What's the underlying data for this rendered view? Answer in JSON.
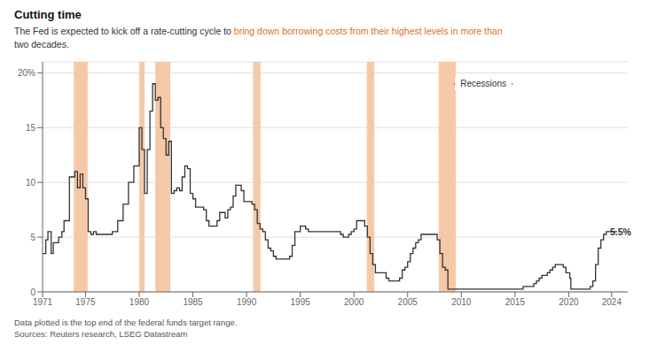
{
  "chart_data": {
    "type": "step",
    "title": "Cutting time",
    "subtitle": [
      [
        {
          "text": "The Fed is expected to kick off a rate-cutting cycle to ",
          "color": "#333333"
        },
        {
          "text": "bring down borrowing costs from their highest levels in more than",
          "color": "#e07020"
        }
      ],
      [
        {
          "text": "two decades.",
          "color": "#333333"
        }
      ]
    ],
    "footnotes": [
      "Data plotted is the top end of the federal funds target range.",
      "Sources: Reuters research, LSEG Datastream"
    ],
    "color": "#333333",
    "recession_color": "#f5c9a8",
    "grid": true,
    "recession_bands": [
      [
        1973.9,
        1975.2
      ],
      [
        1980.0,
        1980.5
      ],
      [
        1981.5,
        1982.9
      ],
      [
        1990.6,
        1991.3
      ],
      [
        2001.2,
        2001.9
      ],
      [
        2007.9,
        2009.5
      ]
    ],
    "annotations": [
      {
        "text": "5.5%",
        "x": 2023.6,
        "y": 5.5
      }
    ],
    "range_label": {
      "text": "Recessions",
      "x": 2012.05,
      "y": 19.0,
      "x_from": 2009.3,
      "x_to": 2014.8
    },
    "xlim": [
      1971,
      2025.5
    ],
    "xticks": [
      1971,
      1975,
      1980,
      1985,
      1990,
      1995,
      2000,
      2005,
      2010,
      2015,
      2020,
      2024
    ],
    "ylim": [
      0,
      21.0
    ],
    "yticks": [
      0,
      5,
      10,
      15,
      {
        "value": 20,
        "label": "20%"
      }
    ],
    "x": [
      1971.0,
      1971.3,
      1971.5,
      1971.8,
      1972.0,
      1972.5,
      1972.8,
      1973.0,
      1973.5,
      1974.0,
      1974.25,
      1974.5,
      1974.75,
      1975.0,
      1975.25,
      1975.5,
      1975.75,
      1976.0,
      1976.5,
      1977.0,
      1977.5,
      1978.0,
      1978.5,
      1979.0,
      1979.5,
      1980.0,
      1980.25,
      1980.5,
      1980.75,
      1981.0,
      1981.25,
      1981.5,
      1981.75,
      1982.0,
      1982.25,
      1982.5,
      1982.75,
      1983.0,
      1983.25,
      1983.5,
      1983.75,
      1984.0,
      1984.25,
      1984.5,
      1984.75,
      1985.0,
      1985.25,
      1985.5,
      1985.75,
      1986.0,
      1986.25,
      1986.5,
      1986.75,
      1987.0,
      1987.25,
      1987.5,
      1987.75,
      1988.0,
      1988.25,
      1988.5,
      1988.75,
      1989.0,
      1989.25,
      1989.5,
      1989.75,
      1990.0,
      1990.25,
      1990.5,
      1990.75,
      1991.0,
      1991.25,
      1991.5,
      1991.75,
      1992.0,
      1992.25,
      1992.5,
      1992.75,
      1993.0,
      1993.5,
      1994.0,
      1994.25,
      1994.5,
      1994.75,
      1995.0,
      1995.25,
      1995.5,
      1995.75,
      1996.0,
      1996.5,
      1997.0,
      1997.5,
      1998.0,
      1998.5,
      1998.75,
      1999.0,
      1999.25,
      1999.5,
      1999.75,
      2000.0,
      2000.25,
      2000.5,
      2000.75,
      2001.0,
      2001.25,
      2001.5,
      2001.75,
      2002.0,
      2002.5,
      2003.0,
      2003.25,
      2004.0,
      2004.25,
      2004.5,
      2004.75,
      2005.0,
      2005.25,
      2005.5,
      2005.75,
      2006.0,
      2006.25,
      2006.5,
      2006.75,
      2007.0,
      2007.25,
      2007.5,
      2007.75,
      2008.0,
      2008.25,
      2008.5,
      2008.75,
      2009.0,
      2009.5,
      2010.0,
      2011.0,
      2012.0,
      2013.0,
      2014.0,
      2015.0,
      2015.75,
      2016.0,
      2016.75,
      2017.0,
      2017.25,
      2017.5,
      2017.75,
      2018.0,
      2018.25,
      2018.5,
      2018.75,
      2019.0,
      2019.5,
      2019.75,
      2020.0,
      2020.1,
      2020.2,
      2020.5,
      2021.0,
      2021.5,
      2022.0,
      2022.25,
      2022.5,
      2022.75,
      2023.0,
      2023.25,
      2023.5,
      2024.0,
      2024.5
    ],
    "values": [
      3.5,
      4.75,
      5.5,
      3.5,
      4.5,
      5.0,
      5.5,
      6.5,
      10.5,
      11.0,
      9.5,
      10.75,
      9.5,
      8.5,
      5.5,
      5.25,
      5.5,
      5.25,
      5.25,
      5.25,
      5.5,
      6.5,
      8.0,
      10.0,
      11.5,
      15.0,
      13.0,
      9.0,
      13.0,
      16.5,
      19.0,
      17.5,
      17.75,
      15.0,
      14.0,
      12.5,
      13.75,
      9.0,
      9.25,
      9.5,
      9.25,
      10.5,
      11.5,
      11.25,
      9.0,
      8.5,
      7.75,
      7.75,
      7.75,
      7.5,
      6.5,
      6.0,
      6.0,
      6.0,
      6.5,
      7.25,
      7.25,
      6.75,
      7.5,
      7.75,
      8.75,
      9.75,
      9.75,
      9.25,
      8.25,
      8.25,
      8.25,
      8.0,
      7.5,
      6.25,
      5.75,
      5.5,
      4.75,
      4.0,
      3.75,
      3.25,
      3.0,
      3.0,
      3.0,
      3.25,
      4.25,
      5.5,
      5.5,
      6.0,
      6.0,
      5.75,
      5.5,
      5.5,
      5.5,
      5.5,
      5.5,
      5.5,
      5.5,
      5.25,
      5.0,
      5.0,
      5.25,
      5.5,
      5.75,
      6.5,
      6.5,
      6.5,
      6.0,
      5.0,
      3.5,
      2.5,
      1.75,
      1.75,
      1.25,
      1.0,
      1.0,
      1.25,
      2.0,
      2.25,
      2.75,
      3.5,
      4.0,
      4.5,
      4.75,
      5.25,
      5.25,
      5.25,
      5.25,
      5.25,
      5.25,
      4.75,
      3.5,
      2.25,
      2.0,
      0.25,
      0.25,
      0.25,
      0.25,
      0.25,
      0.25,
      0.25,
      0.25,
      0.25,
      0.5,
      0.5,
      0.75,
      1.0,
      1.25,
      1.5,
      1.5,
      1.75,
      2.0,
      2.25,
      2.5,
      2.5,
      2.25,
      1.75,
      1.75,
      1.25,
      0.25,
      0.25,
      0.25,
      0.25,
      0.5,
      1.0,
      2.5,
      4.0,
      4.75,
      5.25,
      5.5,
      5.5,
      5.5
    ]
  }
}
